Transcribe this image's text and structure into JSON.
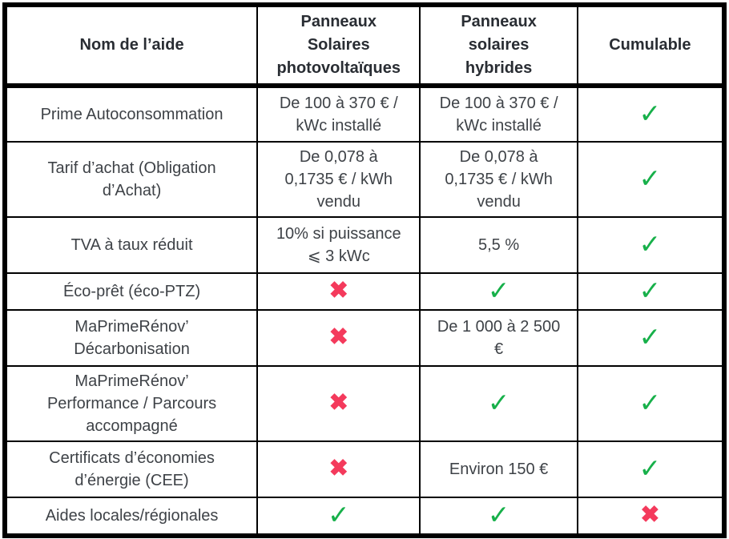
{
  "chart_data": {
    "type": "table",
    "title": "",
    "columns": [
      "Nom de l’aide",
      "Panneaux\nSolaires\nphotovoltaïques",
      "Panneaux\nsolaires\nhybrides",
      "Cumulable"
    ],
    "icons": {
      "check": "✓",
      "cross": "✖"
    },
    "colors": {
      "check_green": "#17b04a",
      "cross_pink": "#f43a5c",
      "border_black": "#000000",
      "header_text": "#292d33",
      "body_text": "#3e4247"
    },
    "rows": [
      {
        "aid": "Prime Autoconsommation",
        "pv": {
          "type": "text",
          "value": "De 100 à 370 € /\nkWc installé"
        },
        "hybrid": {
          "type": "text",
          "value": "De 100 à 370 € /\nkWc installé"
        },
        "cumulable": {
          "type": "check"
        }
      },
      {
        "aid": "Tarif d’achat (Obligation\nd’Achat)",
        "pv": {
          "type": "text",
          "value": "De 0,078 à\n0,1735 € / kWh\nvendu"
        },
        "hybrid": {
          "type": "text",
          "value": "De 0,078 à\n0,1735 € / kWh\nvendu"
        },
        "cumulable": {
          "type": "check"
        }
      },
      {
        "aid": "TVA à taux réduit",
        "pv": {
          "type": "text",
          "value": "10% si puissance\n⩽ 3 kWc"
        },
        "hybrid": {
          "type": "text",
          "value": "5,5 %"
        },
        "cumulable": {
          "type": "check"
        }
      },
      {
        "aid": "Éco-prêt (éco-PTZ)",
        "pv": {
          "type": "cross"
        },
        "hybrid": {
          "type": "check"
        },
        "cumulable": {
          "type": "check"
        }
      },
      {
        "aid": "MaPrimeRénov’\nDécarbonisation",
        "pv": {
          "type": "cross"
        },
        "hybrid": {
          "type": "text",
          "value": "De 1 000 à 2 500\n€"
        },
        "cumulable": {
          "type": "check"
        }
      },
      {
        "aid": "MaPrimeRénov’\nPerformance / Parcours\naccompagné",
        "pv": {
          "type": "cross"
        },
        "hybrid": {
          "type": "check"
        },
        "cumulable": {
          "type": "check"
        }
      },
      {
        "aid": "Certificats d’économies\nd’énergie (CEE)",
        "pv": {
          "type": "cross"
        },
        "hybrid": {
          "type": "text",
          "value": "Environ 150 €"
        },
        "cumulable": {
          "type": "check"
        }
      },
      {
        "aid": "Aides locales/régionales",
        "pv": {
          "type": "check"
        },
        "hybrid": {
          "type": "check"
        },
        "cumulable": {
          "type": "cross"
        }
      }
    ]
  }
}
